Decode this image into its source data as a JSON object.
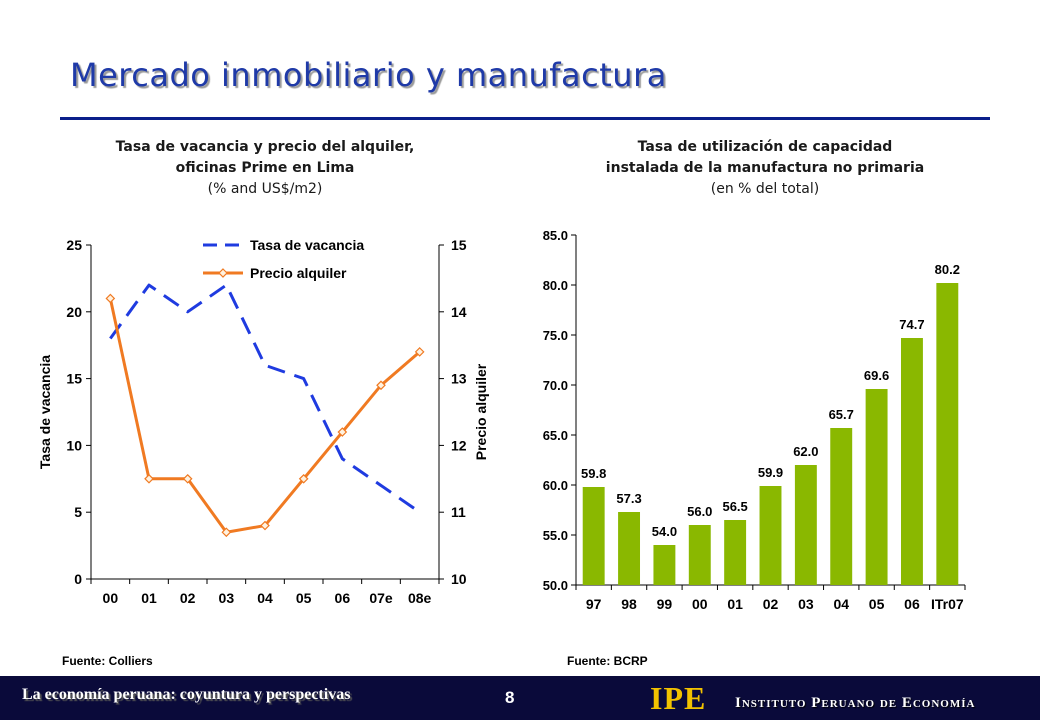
{
  "page": {
    "title": "Mercado inmobiliario y manufactura",
    "footer_text": "La economía peruana: coyuntura y perspectivas",
    "page_number": "8",
    "logo_text": "IPE",
    "institute_name": "Instituto Peruano de Economía",
    "colors": {
      "title": "#1f3aa8",
      "rule": "#0b1f8a",
      "footer_bg": "#0a0a3a",
      "logo": "#f2c200"
    }
  },
  "left_header": {
    "line1": "Tasa de vacancia y precio del alquiler,",
    "line2": "oficinas Prime en Lima",
    "line3": "(% and US$/m2)"
  },
  "right_header": {
    "line1": "Tasa de utilización de capacidad",
    "line2": "instalada de la manufactura no primaria",
    "line3": "(en % del total)"
  },
  "sources": {
    "left": "Fuente: Colliers",
    "right": "Fuente: BCRP"
  },
  "chart_data": [
    {
      "type": "line",
      "categories": [
        "00",
        "01",
        "02",
        "03",
        "04",
        "05",
        "06",
        "07e",
        "08e"
      ],
      "y_left": {
        "label": "Tasa de vacancia",
        "lim": [
          0,
          25
        ],
        "ticks": [
          "0",
          "5",
          "10",
          "15",
          "20",
          "25"
        ]
      },
      "y_right": {
        "label": "Precio alquiler",
        "lim": [
          10,
          15
        ],
        "ticks": [
          "10",
          "11",
          "12",
          "13",
          "14",
          "15"
        ]
      },
      "series": [
        {
          "name": "Tasa de vacancia",
          "axis": "left",
          "style": "dashed",
          "color": "#1f3be0",
          "values": [
            18,
            22,
            20,
            22,
            16,
            15,
            9,
            7,
            5
          ]
        },
        {
          "name": "Precio alquiler",
          "axis": "right",
          "style": "solid-diamond",
          "color": "#f07a22",
          "values": [
            14.2,
            11.5,
            11.5,
            10.7,
            10.8,
            11.5,
            12.2,
            12.9,
            13.4
          ]
        }
      ],
      "legend_position": "top-right"
    },
    {
      "type": "bar",
      "categories": [
        "97",
        "98",
        "99",
        "00",
        "01",
        "02",
        "03",
        "04",
        "05",
        "06",
        "ITr07"
      ],
      "values": [
        59.8,
        57.3,
        54.0,
        56.0,
        56.5,
        59.9,
        62.0,
        65.7,
        69.6,
        74.7,
        80.2
      ],
      "labels": [
        "59.8",
        "57.3",
        "54.0",
        "56.0",
        "56.5",
        "59.9",
        "62.0",
        "65.7",
        "69.6",
        "74.7",
        "80.2"
      ],
      "ylim": [
        50,
        85
      ],
      "yticks": [
        "50.0",
        "55.0",
        "60.0",
        "65.0",
        "70.0",
        "75.0",
        "80.0",
        "85.0"
      ],
      "color": "#8ab800"
    }
  ]
}
